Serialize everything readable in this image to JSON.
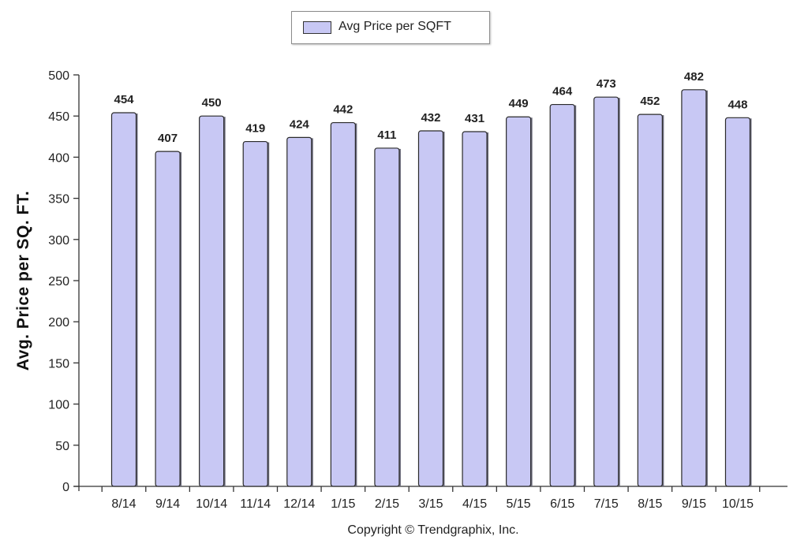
{
  "legend": {
    "label": "Avg Price per SQFT"
  },
  "footer": {
    "copyright": "Copyright © Trendgraphix, Inc."
  },
  "colors": {
    "bar_fill": "#c8c8f4",
    "bar_stroke": "#2a2a2a",
    "axis": "#333333"
  },
  "chart_data": {
    "type": "bar",
    "title": "",
    "xlabel": "",
    "ylabel": "Avg. Price per SQ. FT.",
    "categories": [
      "8/14",
      "9/14",
      "10/14",
      "11/14",
      "12/14",
      "1/15",
      "2/15",
      "3/15",
      "4/15",
      "5/15",
      "6/15",
      "7/15",
      "8/15",
      "9/15",
      "10/15"
    ],
    "series": [
      {
        "name": "Avg Price per SQFT",
        "values": [
          454,
          407,
          450,
          419,
          424,
          442,
          411,
          432,
          431,
          449,
          464,
          473,
          452,
          482,
          448
        ]
      }
    ],
    "ylim": [
      0,
      500
    ],
    "yticks": [
      0,
      50,
      100,
      150,
      200,
      250,
      300,
      350,
      400,
      450,
      500
    ],
    "grid": false,
    "legend_position": "top-center",
    "data_labels": true
  }
}
